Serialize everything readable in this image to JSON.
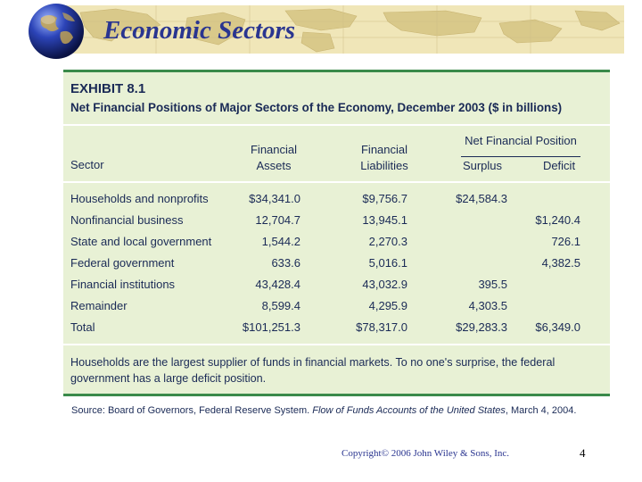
{
  "slide": {
    "title": "Economic Sectors",
    "copyright": "Copyright© 2006 John Wiley & Sons, Inc.",
    "page_number": "4"
  },
  "exhibit": {
    "label": "EXHIBIT 8.1",
    "title": "Net Financial Positions of Major Sectors of the Economy, December 2003 ($ in billions)",
    "group_header": "Net Financial Position",
    "columns": {
      "sector": "Sector",
      "assets_1": "Financial",
      "assets_2": "Assets",
      "liabilities_1": "Financial",
      "liabilities_2": "Liabilities",
      "surplus": "Surplus",
      "deficit": "Deficit"
    },
    "rows": [
      {
        "sector": "Households and nonprofits",
        "assets": "$34,341.0",
        "liabilities": "$9,756.7",
        "surplus": "$24,584.3",
        "deficit": ""
      },
      {
        "sector": "Nonfinancial business",
        "assets": "12,704.7",
        "liabilities": "13,945.1",
        "surplus": "",
        "deficit": "$1,240.4"
      },
      {
        "sector": "State and local government",
        "assets": "1,544.2",
        "liabilities": "2,270.3",
        "surplus": "",
        "deficit": "726.1"
      },
      {
        "sector": "Federal government",
        "assets": "633.6",
        "liabilities": "5,016.1",
        "surplus": "",
        "deficit": "4,382.5"
      },
      {
        "sector": "Financial institutions",
        "assets": "43,428.4",
        "liabilities": "43,032.9",
        "surplus": "395.5",
        "deficit": ""
      },
      {
        "sector": "Remainder",
        "assets": "8,599.4",
        "liabilities": "4,295.9",
        "surplus": "4,303.5",
        "deficit": ""
      },
      {
        "sector": "Total",
        "assets": "$101,251.3",
        "liabilities": "$78,317.0",
        "surplus": "$29,283.3",
        "deficit": "$6,349.0"
      }
    ],
    "note": "Households are the largest supplier of funds in financial markets. To no one's surprise, the federal government has a large deficit position.",
    "source_prefix": "Source: Board of Governors, Federal Reserve System. ",
    "source_italic": "Flow of Funds Accounts of the United States",
    "source_suffix": ", March 4, 2004."
  },
  "colors": {
    "title": "#2a3590",
    "table_bg": "#e8f1d5",
    "table_border": "#3a8a4a",
    "text": "#1a2a56"
  }
}
